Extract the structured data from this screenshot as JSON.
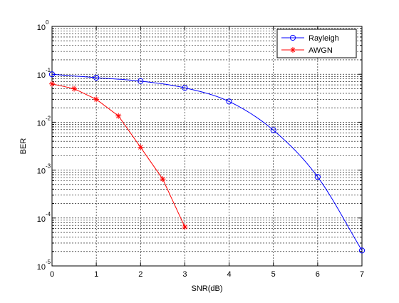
{
  "chart_data": {
    "type": "line",
    "title": "",
    "xlabel": "SNR(dB)",
    "ylabel": "BER",
    "xlim": [
      0,
      7
    ],
    "ylim": [
      1e-05,
      1
    ],
    "yscale": "log",
    "grid": true,
    "grid_style": "dashed",
    "legend_position": "top-right",
    "x_ticks": [
      "0",
      "1",
      "2",
      "3",
      "4",
      "5",
      "6",
      "7"
    ],
    "y_tick_exponents": [
      {
        "base": "10",
        "exp": "0",
        "value": 1
      },
      {
        "base": "10",
        "exp": "-1",
        "value": 0.1
      },
      {
        "base": "10",
        "exp": "-2",
        "value": 0.01
      },
      {
        "base": "10",
        "exp": "-3",
        "value": 0.001
      },
      {
        "base": "10",
        "exp": "-4",
        "value": 0.0001
      },
      {
        "base": "10",
        "exp": "-5",
        "value": 1e-05
      }
    ],
    "series": [
      {
        "name": "Rayleigh",
        "color": "#0000ff",
        "marker": "circle",
        "x": [
          0,
          1,
          2,
          3,
          4,
          5,
          6,
          7
        ],
        "y": [
          0.1,
          0.085,
          0.072,
          0.052,
          0.027,
          0.0068,
          0.00072,
          2.1e-05
        ],
        "smooth": true
      },
      {
        "name": "AWGN",
        "color": "#ff0000",
        "marker": "star",
        "x": [
          0,
          0.5,
          1,
          1.5,
          2,
          2.5,
          3
        ],
        "y": [
          0.063,
          0.05,
          0.03,
          0.0135,
          0.003,
          0.00065,
          6.5e-05
        ],
        "smooth": false
      }
    ]
  }
}
